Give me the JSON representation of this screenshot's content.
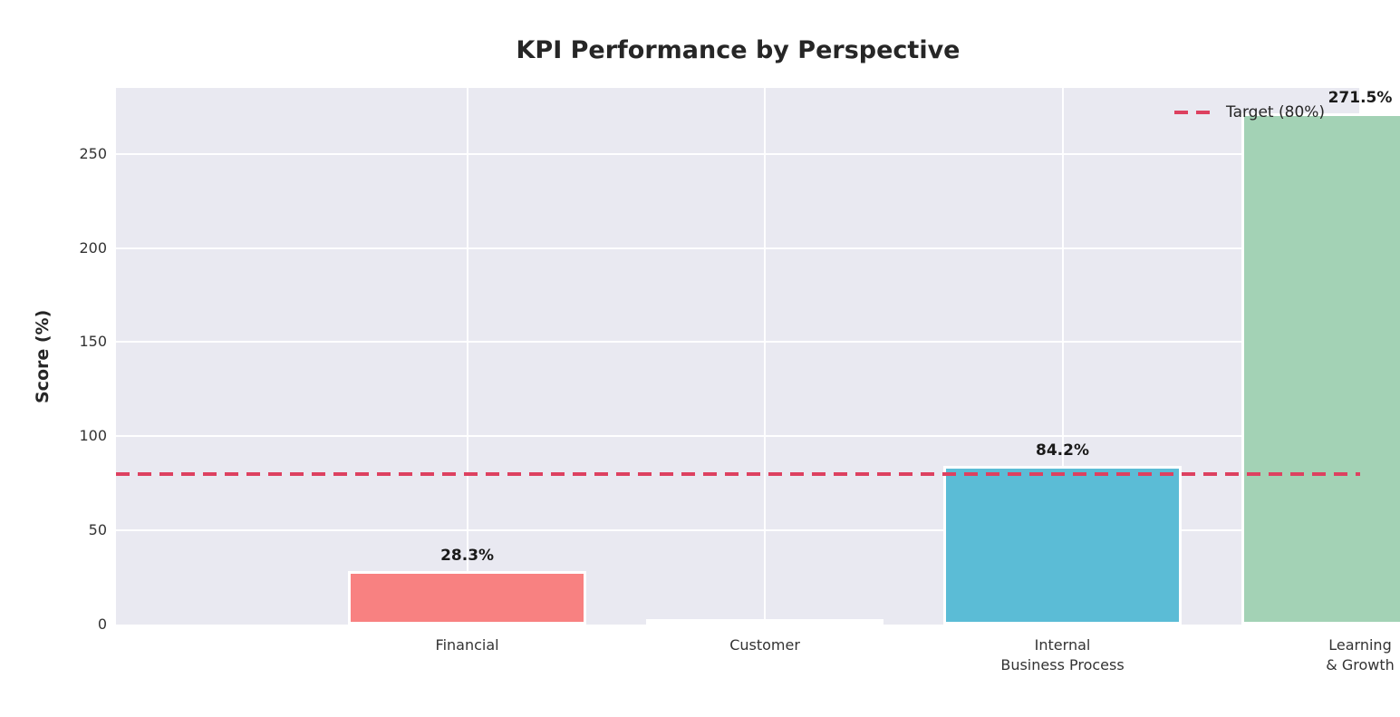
{
  "chart_data": {
    "type": "bar",
    "title": "KPI Performance by Perspective",
    "ylabel": "Score (%)",
    "yticks": [
      0,
      50,
      100,
      150,
      200,
      250
    ],
    "ylim": [
      0,
      285
    ],
    "grid": true,
    "categories": [
      [
        "Financial"
      ],
      [
        "Customer"
      ],
      [
        "Internal",
        "Business Process"
      ],
      [
        "Learning",
        "& Growth"
      ]
    ],
    "values": [
      28.3,
      0.0,
      84.2,
      271.5
    ],
    "value_labels": [
      "28.3%",
      "",
      "84.2%",
      "271.5%"
    ],
    "bar_colors": [
      "#f88181",
      null,
      "#5bbcd6",
      "#a3d2b5"
    ],
    "bar_edge_color": "#ffffff",
    "plot_background": "#e9e9f1",
    "target": {
      "value": 80,
      "legend_label": "Target (80%)",
      "color": "#dd4160",
      "linestyle": "dashed"
    },
    "legend_position": "upper right"
  }
}
